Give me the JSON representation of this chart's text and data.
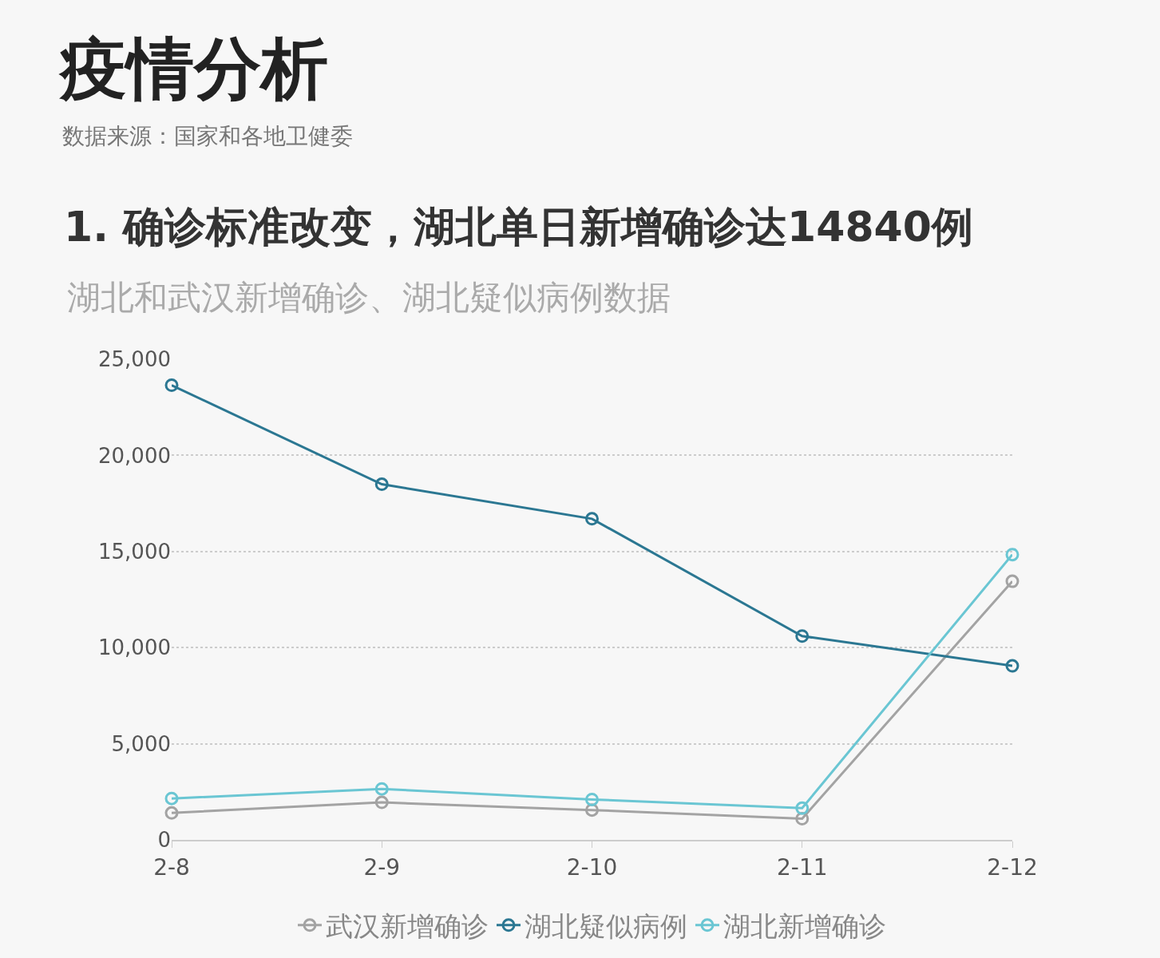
{
  "chart_data": {
    "type": "line",
    "title": "1. 确诊标准改变，湖北单日新增确诊达14840例",
    "subtitle": "湖北和武汉新增确诊、湖北疑似病例数据",
    "annotations": [
      "疫情分析",
      "数据来源：国家和各地卫健委"
    ],
    "categories": [
      "2-8",
      "2-9",
      "2-10",
      "2-11",
      "2-12"
    ],
    "series": [
      {
        "name": "武汉新增确诊",
        "color": "#a3a3a3",
        "values": [
          1400,
          1950,
          1550,
          1100,
          13450
        ]
      },
      {
        "name": "湖北疑似病例",
        "color": "#2b7792",
        "values": [
          23650,
          18500,
          16700,
          10600,
          9050
        ]
      },
      {
        "name": "湖北新增确诊",
        "color": "#6ac6d3",
        "values": [
          2150,
          2650,
          2100,
          1650,
          14840
        ]
      }
    ],
    "ylim": [
      0,
      25000
    ],
    "yticks": [
      {
        "value": 0,
        "label": "0"
      },
      {
        "value": 5000,
        "label": "5,000"
      },
      {
        "value": 10000,
        "label": "10,000"
      },
      {
        "value": 15000,
        "label": "15,000"
      },
      {
        "value": 20000,
        "label": "20,000"
      },
      {
        "value": 25000,
        "label": "25,000"
      }
    ],
    "grid": "y",
    "legend": "bottom",
    "marker": "circle",
    "line_style": "solid"
  }
}
